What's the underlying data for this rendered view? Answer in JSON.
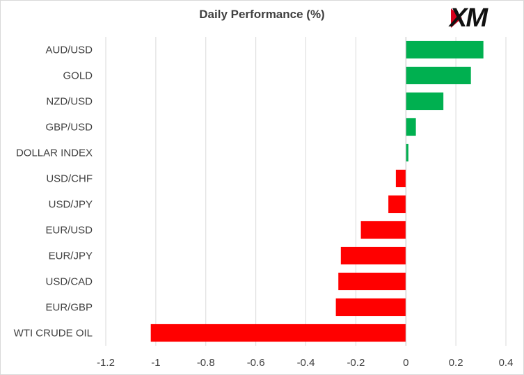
{
  "title": "Daily Performance (%)",
  "logo": {
    "text": "XM"
  },
  "colors": {
    "positive": "#00b050",
    "negative": "#ff0000",
    "grid": "#d9d9d9",
    "zero_axis": "#bfbfbf",
    "text": "#404040"
  },
  "chart_data": {
    "type": "bar",
    "orientation": "horizontal",
    "title": "Daily Performance (%)",
    "xlabel": "",
    "ylabel": "",
    "xlim": [
      -1.2,
      0.4
    ],
    "xticks": [
      -1.2,
      -1,
      -0.8,
      -0.6,
      -0.4,
      -0.2,
      0,
      0.2,
      0.4
    ],
    "xtick_labels": [
      "-1.2",
      "-1",
      "-0.8",
      "-0.6",
      "-0.4",
      "-0.2",
      "0",
      "0.2",
      "0.4"
    ],
    "grid": "vertical",
    "categories": [
      "AUD/USD",
      "GOLD",
      "NZD/USD",
      "GBP/USD",
      "DOLLAR INDEX",
      "USD/CHF",
      "USD/JPY",
      "EUR/USD",
      "EUR/JPY",
      "USD/CAD",
      "EUR/GBP",
      "WTI CRUDE OIL"
    ],
    "values": [
      0.31,
      0.26,
      0.15,
      0.04,
      0.01,
      -0.04,
      -0.07,
      -0.18,
      -0.26,
      -0.27,
      -0.28,
      -1.02
    ]
  }
}
